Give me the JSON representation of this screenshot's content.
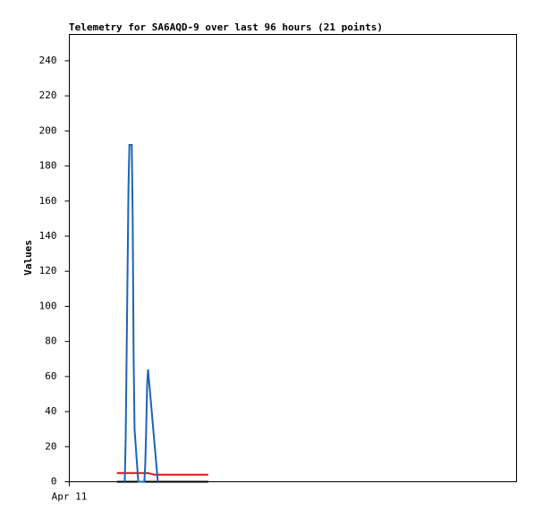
{
  "chart_data": {
    "type": "line",
    "title": "Telemetry for SA6AQD-9 over last 96 hours (21 points)",
    "y_label": "Values",
    "xlim": [
      0,
      96
    ],
    "xticks": [
      {
        "value": 0,
        "label": "Apr 11"
      }
    ],
    "ylim": [
      0,
      255
    ],
    "yticks": [
      0,
      20,
      40,
      60,
      80,
      100,
      120,
      140,
      160,
      180,
      200,
      220,
      240
    ],
    "series": [
      {
        "color": "#000000",
        "x": [
          10.2,
          29.8
        ],
        "values": [
          0,
          0
        ]
      },
      {
        "color": "#e01010",
        "x": [
          10.2,
          16.9,
          18.2,
          29.8
        ],
        "values": [
          5,
          5,
          4,
          4
        ]
      },
      {
        "color": "#1c64b8",
        "x": [
          11.9,
          12.1,
          12.3,
          12.5,
          12.7,
          12.9,
          13.4,
          13.6,
          13.8,
          14.0,
          14.8,
          16.1,
          16.3,
          16.5,
          16.7,
          16.9,
          19.0
        ],
        "values": [
          0,
          25,
          72,
          120,
          168,
          192,
          192,
          152,
          72,
          30,
          0,
          0,
          10,
          30,
          55,
          64,
          0
        ]
      }
    ]
  }
}
